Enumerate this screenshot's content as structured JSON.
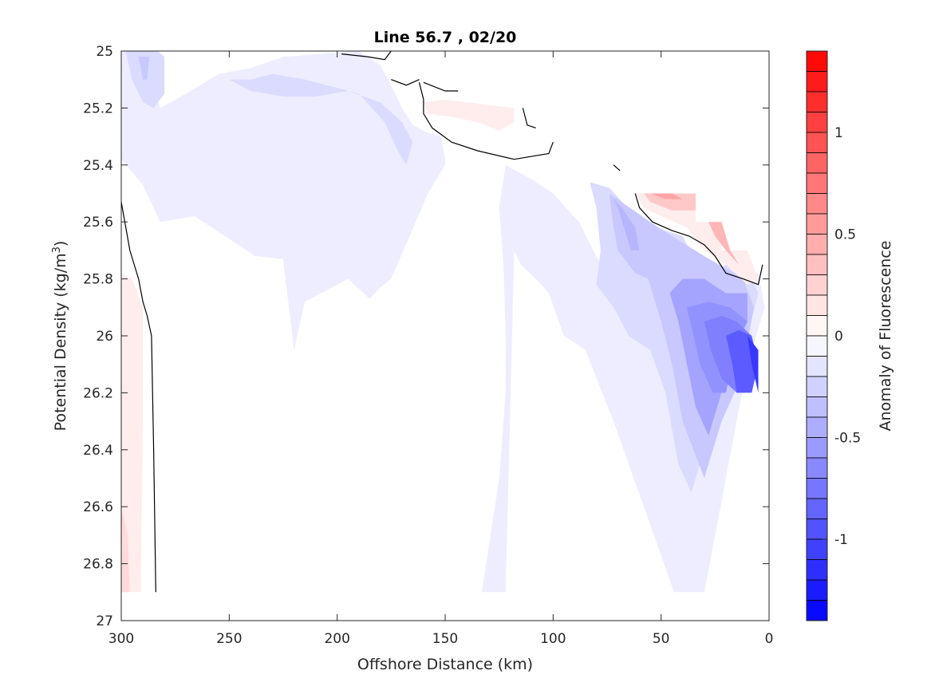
{
  "chart_data": {
    "type": "contour",
    "title": "Line 56.7 , 02/20",
    "xlabel": "Offshore Distance (km)",
    "ylabel_main": "Potential Density (kg/m",
    "ylabel_sup": "3",
    "ylabel_close": ")",
    "colorbar_label": "Anomaly of Fluorescence",
    "xlim": [
      300,
      0
    ],
    "ylim": [
      25,
      27
    ],
    "x_ticks": [
      300,
      250,
      200,
      150,
      100,
      50,
      0
    ],
    "x_tick_labels": [
      "300",
      "250",
      "200",
      "150",
      "100",
      "50",
      "0"
    ],
    "y_ticks": [
      25,
      25.2,
      25.4,
      25.6,
      25.8,
      26,
      26.2,
      26.4,
      26.6,
      26.8,
      27
    ],
    "y_tick_labels": [
      "25",
      "25.2",
      "25.4",
      "25.6",
      "25.8",
      "26",
      "26.2",
      "26.4",
      "26.6",
      "26.8",
      "27"
    ],
    "y_reversed": true,
    "grid": false,
    "colorbar": {
      "clim": [
        -1.4,
        1.4
      ],
      "levels": 28,
      "ticks": [
        1,
        0.5,
        0,
        -0.5,
        -1
      ],
      "tick_labels": [
        "1",
        "0.5",
        "0",
        "-0.5",
        "-1"
      ],
      "colormap": "blue-white-red",
      "low_color": "#0000ff",
      "mid_color": "#ffffff",
      "high_color": "#ff0000"
    },
    "regions": [
      {
        "level": -0.1,
        "points": [
          [
            300,
            25
          ],
          [
            287,
            25
          ],
          [
            282,
            25.2
          ],
          [
            270,
            25.15
          ],
          [
            255,
            25.08
          ],
          [
            240,
            25.06
          ],
          [
            225,
            25.02
          ],
          [
            190,
            25
          ],
          [
            180,
            25.05
          ],
          [
            175,
            25.12
          ],
          [
            170,
            25.2
          ],
          [
            165,
            25.26
          ],
          [
            160,
            25.28
          ],
          [
            152,
            25.3
          ],
          [
            150,
            25.38
          ],
          [
            150,
            25.4
          ],
          [
            158,
            25.5
          ],
          [
            175,
            25.8
          ],
          [
            180,
            25.83
          ],
          [
            185,
            25.87
          ],
          [
            195,
            25.8
          ],
          [
            215,
            25.88
          ],
          [
            220,
            26.05
          ],
          [
            225,
            25.73
          ],
          [
            238,
            25.72
          ],
          [
            252,
            25.65
          ],
          [
            266,
            25.58
          ],
          [
            282,
            25.6
          ],
          [
            290,
            25.47
          ],
          [
            300,
            25.38
          ]
        ]
      },
      {
        "level": -0.2,
        "points": [
          [
            298,
            25
          ],
          [
            295,
            25.1
          ],
          [
            290,
            25.18
          ],
          [
            285,
            25.2
          ],
          [
            280,
            25.15
          ],
          [
            280,
            25.02
          ],
          [
            283,
            25
          ]
        ]
      },
      {
        "level": -0.2,
        "points": [
          [
            250,
            25.1
          ],
          [
            240,
            25.1
          ],
          [
            230,
            25.08
          ],
          [
            215,
            25.1
          ],
          [
            205,
            25.12
          ],
          [
            190,
            25.15
          ],
          [
            178,
            25.25
          ],
          [
            172,
            25.35
          ],
          [
            168,
            25.4
          ],
          [
            165,
            25.32
          ],
          [
            170,
            25.25
          ],
          [
            180,
            25.18
          ],
          [
            195,
            25.14
          ],
          [
            210,
            25.16
          ],
          [
            225,
            25.16
          ],
          [
            240,
            25.14
          ]
        ]
      },
      {
        "level": -0.3,
        "points": [
          [
            292,
            25.02
          ],
          [
            290,
            25.1
          ],
          [
            288,
            25.1
          ],
          [
            287,
            25.02
          ]
        ]
      },
      {
        "level": -0.1,
        "points": [
          [
            122,
            25.4
          ],
          [
            110,
            25.45
          ],
          [
            100,
            25.5
          ],
          [
            88,
            25.6
          ],
          [
            78,
            25.75
          ],
          [
            70,
            25.85
          ],
          [
            60,
            25.95
          ],
          [
            40,
            25.95
          ],
          [
            28,
            25.85
          ],
          [
            18,
            25.78
          ],
          [
            5,
            25.78
          ],
          [
            2,
            25.9
          ],
          [
            10,
            26.1
          ],
          [
            20,
            26.5
          ],
          [
            30,
            26.9
          ],
          [
            36,
            26.9
          ],
          [
            44,
            26.9
          ],
          [
            58,
            26.6
          ],
          [
            72,
            26.3
          ],
          [
            85,
            26.05
          ],
          [
            95,
            26.0
          ],
          [
            102,
            25.85
          ],
          [
            108,
            25.8
          ],
          [
            115,
            25.75
          ],
          [
            118,
            25.7
          ],
          [
            122,
            26.9
          ],
          [
            133,
            26.9
          ],
          [
            125,
            26.5
          ],
          [
            122,
            26.2
          ],
          [
            122,
            26.0
          ],
          [
            123,
            25.75
          ],
          [
            125,
            25.55
          ]
        ]
      },
      {
        "level": -0.2,
        "points": [
          [
            83,
            25.46
          ],
          [
            80,
            25.55
          ],
          [
            78,
            25.7
          ],
          [
            80,
            25.82
          ],
          [
            72,
            25.9
          ],
          [
            65,
            26.0
          ],
          [
            55,
            26.05
          ],
          [
            48,
            26.2
          ],
          [
            42,
            26.45
          ],
          [
            36,
            26.55
          ],
          [
            28,
            26.35
          ],
          [
            18,
            26.15
          ],
          [
            10,
            26.0
          ],
          [
            5,
            25.85
          ],
          [
            8,
            25.8
          ],
          [
            20,
            25.75
          ],
          [
            30,
            25.8
          ],
          [
            40,
            25.65
          ],
          [
            52,
            25.62
          ],
          [
            62,
            25.58
          ],
          [
            74,
            25.48
          ]
        ]
      },
      {
        "level": -0.3,
        "points": [
          [
            74,
            25.5
          ],
          [
            72,
            25.62
          ],
          [
            70,
            25.7
          ],
          [
            62,
            25.78
          ],
          [
            56,
            25.8
          ],
          [
            50,
            25.95
          ],
          [
            45,
            26.1
          ],
          [
            40,
            26.3
          ],
          [
            30,
            26.5
          ],
          [
            22,
            26.3
          ],
          [
            13,
            26.15
          ],
          [
            7,
            25.9
          ],
          [
            12,
            25.8
          ],
          [
            30,
            25.72
          ],
          [
            45,
            25.65
          ],
          [
            55,
            25.6
          ]
        ]
      },
      {
        "level": -0.4,
        "points": [
          [
            72,
            25.52
          ],
          [
            70,
            25.55
          ],
          [
            64,
            25.7
          ],
          [
            60,
            25.7
          ],
          [
            62,
            25.62
          ],
          [
            68,
            25.55
          ]
        ]
      },
      {
        "level": -0.5,
        "points": [
          [
            46,
            25.85
          ],
          [
            42,
            25.95
          ],
          [
            38,
            26.1
          ],
          [
            34,
            26.25
          ],
          [
            28,
            26.35
          ],
          [
            22,
            26.2
          ],
          [
            16,
            26.05
          ],
          [
            10,
            25.95
          ],
          [
            10,
            25.85
          ],
          [
            20,
            25.85
          ],
          [
            30,
            25.8
          ],
          [
            40,
            25.8
          ]
        ]
      },
      {
        "level": -0.6,
        "points": [
          [
            38,
            25.9
          ],
          [
            35,
            26.0
          ],
          [
            32,
            26.1
          ],
          [
            26,
            26.2
          ],
          [
            20,
            26.2
          ],
          [
            14,
            26.0
          ],
          [
            10,
            25.95
          ],
          [
            18,
            25.9
          ],
          [
            28,
            25.88
          ]
        ]
      },
      {
        "level": -0.7,
        "points": [
          [
            30,
            25.95
          ],
          [
            27,
            26.05
          ],
          [
            22,
            26.15
          ],
          [
            15,
            26.2
          ],
          [
            10,
            26.1
          ],
          [
            8,
            26.0
          ],
          [
            15,
            25.95
          ],
          [
            22,
            25.93
          ]
        ]
      },
      {
        "level": -0.9,
        "points": [
          [
            20,
            26.0
          ],
          [
            17,
            26.1
          ],
          [
            15,
            26.2
          ],
          [
            8,
            26.2
          ],
          [
            5,
            26.1
          ],
          [
            8,
            26.0
          ],
          [
            14,
            25.98
          ]
        ]
      },
      {
        "level": -1.1,
        "points": [
          [
            10,
            26.0
          ],
          [
            8,
            26.1
          ],
          [
            5,
            26.2
          ],
          [
            5,
            26.05
          ]
        ]
      },
      {
        "level": 0.1,
        "points": [
          [
            300,
            25.78
          ],
          [
            295,
            25.8
          ],
          [
            290,
            25.9
          ],
          [
            290,
            26.3
          ],
          [
            291,
            26.9
          ],
          [
            300,
            26.9
          ]
        ]
      },
      {
        "level": 0.2,
        "points": [
          [
            300,
            26.6
          ],
          [
            297,
            26.7
          ],
          [
            296,
            26.9
          ],
          [
            300,
            26.9
          ]
        ]
      },
      {
        "level": 0.1,
        "points": [
          [
            160,
            25.18
          ],
          [
            150,
            25.17
          ],
          [
            140,
            25.18
          ],
          [
            118,
            25.2
          ],
          [
            118,
            25.25
          ],
          [
            125,
            25.28
          ],
          [
            135,
            25.25
          ],
          [
            148,
            25.23
          ],
          [
            158,
            25.22
          ]
        ]
      },
      {
        "level": 0.1,
        "points": [
          [
            62,
            25.5
          ],
          [
            40,
            25.5
          ],
          [
            34,
            25.5
          ],
          [
            34,
            25.6
          ],
          [
            22,
            25.6
          ],
          [
            22,
            25.7
          ],
          [
            10,
            25.7
          ],
          [
            5,
            25.8
          ],
          [
            10,
            25.82
          ],
          [
            20,
            25.75
          ],
          [
            30,
            25.7
          ],
          [
            38,
            25.62
          ],
          [
            50,
            25.58
          ],
          [
            58,
            25.55
          ]
        ]
      },
      {
        "level": 0.3,
        "points": [
          [
            58,
            25.5
          ],
          [
            40,
            25.5
          ],
          [
            34,
            25.5
          ],
          [
            34,
            25.56
          ],
          [
            45,
            25.56
          ],
          [
            55,
            25.53
          ]
        ]
      },
      {
        "level": 0.4,
        "points": [
          [
            28,
            25.6
          ],
          [
            22,
            25.6
          ],
          [
            18,
            25.7
          ],
          [
            14,
            25.75
          ],
          [
            20,
            25.7
          ],
          [
            25,
            25.65
          ]
        ]
      },
      {
        "level": 0.5,
        "points": [
          [
            55,
            25.5
          ],
          [
            45,
            25.5
          ],
          [
            40,
            25.52
          ],
          [
            48,
            25.52
          ]
        ]
      }
    ],
    "contour_lines": [
      [
        [
          300,
          25.53
        ],
        [
          296,
          25.7
        ],
        [
          292,
          25.8
        ],
        [
          290,
          25.88
        ],
        [
          288,
          25.93
        ],
        [
          286,
          26.0
        ],
        [
          285,
          26.4
        ],
        [
          284,
          26.9
        ]
      ],
      [
        [
          198,
          25.01
        ],
        [
          186,
          25.02
        ],
        [
          178,
          25.03
        ],
        [
          175,
          25.0
        ]
      ],
      [
        [
          175,
          25.1
        ],
        [
          168,
          25.12
        ],
        [
          162,
          25.1
        ]
      ],
      [
        [
          162,
          25.11
        ],
        [
          160,
          25.17
        ],
        [
          160,
          25.22
        ],
        [
          156,
          25.27
        ],
        [
          147,
          25.32
        ],
        [
          135,
          25.35
        ],
        [
          118,
          25.38
        ],
        [
          102,
          25.36
        ],
        [
          100,
          25.32
        ]
      ],
      [
        [
          160,
          25.11
        ],
        [
          150,
          25.14
        ],
        [
          144,
          25.14
        ]
      ],
      [
        [
          114,
          25.2
        ],
        [
          112,
          25.26
        ],
        [
          108,
          25.27
        ]
      ],
      [
        [
          72,
          25.4
        ],
        [
          69,
          25.42
        ]
      ],
      [
        [
          62,
          25.5
        ],
        [
          60,
          25.55
        ],
        [
          54,
          25.6
        ],
        [
          45,
          25.63
        ],
        [
          37,
          25.65
        ],
        [
          30,
          25.68
        ],
        [
          25,
          25.72
        ],
        [
          20,
          25.78
        ],
        [
          12,
          25.8
        ],
        [
          5,
          25.82
        ],
        [
          3,
          25.75
        ]
      ]
    ]
  }
}
